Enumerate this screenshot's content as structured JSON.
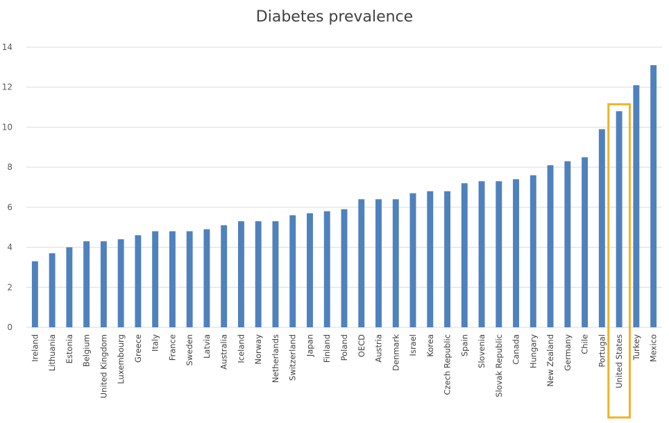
{
  "chart_data": {
    "type": "bar",
    "title": "Diabetes prevalence",
    "xlabel": "",
    "ylabel": "",
    "ylim": [
      0,
      14
    ],
    "yticks": [
      0,
      2,
      4,
      6,
      8,
      10,
      12,
      14
    ],
    "grid": true,
    "legend": "none",
    "bar_color": "#4F81BD",
    "highlight_color": "#F0B323",
    "highlighted_category": "United States",
    "categories": [
      "Ireland",
      "Lithuania",
      "Estonia",
      "Belgium",
      "United Kingdom",
      "Luxembourg",
      "Greece",
      "Italy",
      "France",
      "Sweden",
      "Latvia",
      "Australia",
      "Iceland",
      "Norway",
      "Netherlands",
      "Switzerland",
      "Japan",
      "Finland",
      "Poland",
      "OECD",
      "Austria",
      "Denmark",
      "Israel",
      "Korea",
      "Czech Republic",
      "Spain",
      "Slovenia",
      "Slovak Republic",
      "Canada",
      "Hungary",
      "New Zealand",
      "Germany",
      "Chile",
      "Portugal",
      "United States",
      "Turkey",
      "Mexico"
    ],
    "values": [
      3.3,
      3.7,
      4.0,
      4.3,
      4.3,
      4.4,
      4.6,
      4.8,
      4.8,
      4.8,
      4.9,
      5.1,
      5.3,
      5.3,
      5.3,
      5.6,
      5.7,
      5.8,
      5.9,
      6.4,
      6.4,
      6.4,
      6.7,
      6.8,
      6.8,
      7.2,
      7.3,
      7.3,
      7.4,
      7.6,
      8.1,
      8.3,
      8.5,
      9.9,
      10.8,
      12.1,
      13.1
    ]
  }
}
